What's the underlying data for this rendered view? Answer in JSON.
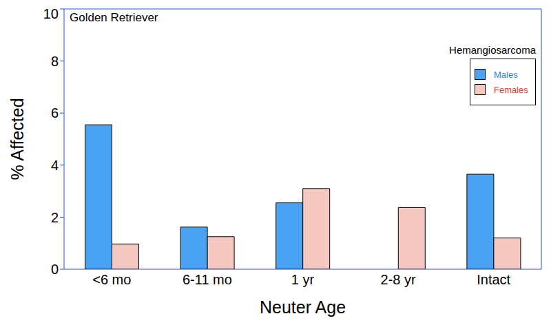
{
  "chart_data": {
    "type": "bar",
    "title": "Golden Retriever",
    "subtitle": "Hemangiosarcoma",
    "x_label": "Neuter Age",
    "y_label": "% Affected",
    "categories": [
      "<6 mo",
      "6-11 mo",
      "1 yr",
      "2-8 yr",
      "Intact"
    ],
    "series": [
      {
        "name": "Males",
        "color": "#4aa3f2",
        "values": [
          5.55,
          1.62,
          2.55,
          0,
          3.65
        ]
      },
      {
        "name": "Females",
        "color": "#f6c8c2",
        "values": [
          0.97,
          1.25,
          3.1,
          2.37,
          1.2
        ]
      }
    ],
    "ylim": [
      0,
      10
    ],
    "yticks": [
      0,
      2,
      4,
      6,
      8,
      10
    ],
    "grid": false,
    "legend": "upper right"
  }
}
